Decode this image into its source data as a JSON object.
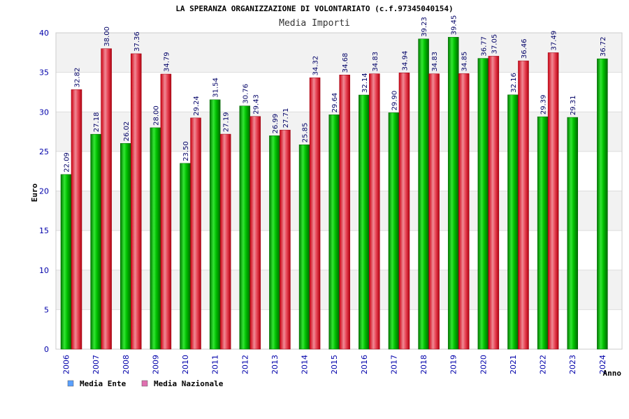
{
  "chart_data": {
    "type": "bar",
    "title": "LA SPERANZA ORGANIZZAZIONE DI VOLONTARIATO (c.f.97345040154)",
    "subtitle": "Media Importi",
    "xlabel": "Anno",
    "ylabel": "Euro",
    "ylim": [
      0,
      40
    ],
    "yticks": [
      0,
      5,
      10,
      15,
      20,
      25,
      30,
      35,
      40
    ],
    "grid": true,
    "legend_position": "bottom-left",
    "categories": [
      "2006",
      "2007",
      "2008",
      "2009",
      "2010",
      "2011",
      "2012",
      "2013",
      "2014",
      "2015",
      "2016",
      "2017",
      "2018",
      "2019",
      "2020",
      "2021",
      "2022",
      "2023",
      "2024"
    ],
    "series": [
      {
        "name": "Media Ente",
        "color": "#00cc00",
        "legend_color": "#5aa0ff",
        "values": [
          22.09,
          27.18,
          26.02,
          28.0,
          23.5,
          31.54,
          30.76,
          26.99,
          25.85,
          29.64,
          32.14,
          29.9,
          39.23,
          39.45,
          36.77,
          32.16,
          29.39,
          29.31,
          36.72
        ],
        "labels": [
          "22.09",
          "27.18",
          "26.02",
          "28.00",
          "23.50",
          "31.54",
          "30.76",
          "26.99",
          "25.85",
          "29.64",
          "32.14",
          "29.90",
          "39.23",
          "39.45",
          "36.77",
          "32.16",
          "29.39",
          "29.31",
          "36.72"
        ]
      },
      {
        "name": "Media Nazionale",
        "color": "#ee2233",
        "legend_color": "#e070b0",
        "values": [
          32.82,
          38.0,
          37.36,
          34.79,
          29.24,
          27.19,
          29.43,
          27.71,
          34.32,
          34.68,
          34.83,
          34.94,
          34.83,
          34.85,
          37.05,
          36.46,
          37.49,
          null,
          null
        ],
        "labels": [
          "32.82",
          "38.00",
          "37.36",
          "34.79",
          "29.24",
          "27.19",
          "29.43",
          "27.71",
          "34.32",
          "34.68",
          "34.83",
          "34.94",
          "34.83",
          "34.85",
          "37.05",
          "36.46",
          "37.49",
          "",
          ""
        ]
      }
    ]
  }
}
